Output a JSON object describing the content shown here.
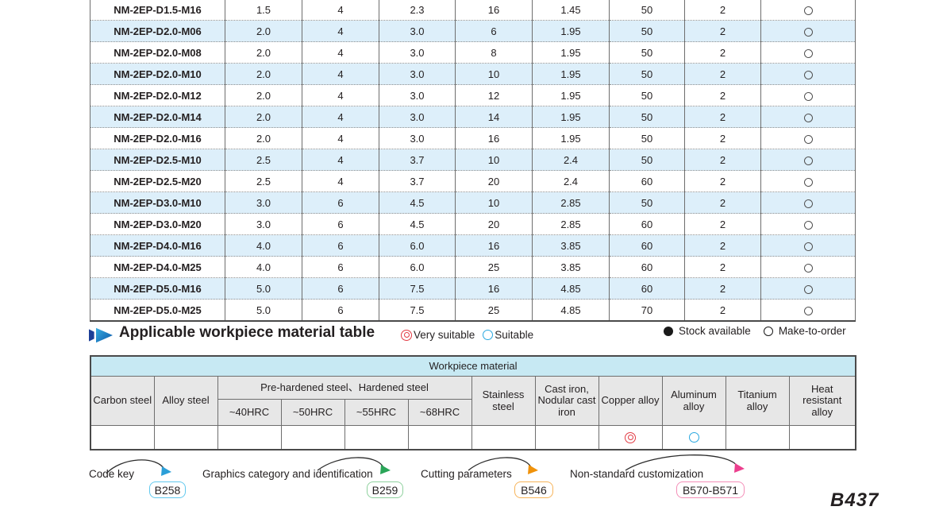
{
  "main_table": {
    "stock_legend_meaning": "Make-to-order",
    "rows": [
      {
        "model": "NM-2EP-D1.5-M16",
        "values": [
          "1.5",
          "4",
          "2.3",
          "16",
          "1.45",
          "50",
          "2"
        ],
        "stock": "make-to-order"
      },
      {
        "model": "NM-2EP-D2.0-M06",
        "values": [
          "2.0",
          "4",
          "3.0",
          "6",
          "1.95",
          "50",
          "2"
        ],
        "stock": "make-to-order"
      },
      {
        "model": "NM-2EP-D2.0-M08",
        "values": [
          "2.0",
          "4",
          "3.0",
          "8",
          "1.95",
          "50",
          "2"
        ],
        "stock": "make-to-order"
      },
      {
        "model": "NM-2EP-D2.0-M10",
        "values": [
          "2.0",
          "4",
          "3.0",
          "10",
          "1.95",
          "50",
          "2"
        ],
        "stock": "make-to-order"
      },
      {
        "model": "NM-2EP-D2.0-M12",
        "values": [
          "2.0",
          "4",
          "3.0",
          "12",
          "1.95",
          "50",
          "2"
        ],
        "stock": "make-to-order"
      },
      {
        "model": "NM-2EP-D2.0-M14",
        "values": [
          "2.0",
          "4",
          "3.0",
          "14",
          "1.95",
          "50",
          "2"
        ],
        "stock": "make-to-order"
      },
      {
        "model": "NM-2EP-D2.0-M16",
        "values": [
          "2.0",
          "4",
          "3.0",
          "16",
          "1.95",
          "50",
          "2"
        ],
        "stock": "make-to-order"
      },
      {
        "model": "NM-2EP-D2.5-M10",
        "values": [
          "2.5",
          "4",
          "3.7",
          "10",
          "2.4",
          "50",
          "2"
        ],
        "stock": "make-to-order"
      },
      {
        "model": "NM-2EP-D2.5-M20",
        "values": [
          "2.5",
          "4",
          "3.7",
          "20",
          "2.4",
          "60",
          "2"
        ],
        "stock": "make-to-order"
      },
      {
        "model": "NM-2EP-D3.0-M10",
        "values": [
          "3.0",
          "6",
          "4.5",
          "10",
          "2.85",
          "50",
          "2"
        ],
        "stock": "make-to-order"
      },
      {
        "model": "NM-2EP-D3.0-M20",
        "values": [
          "3.0",
          "6",
          "4.5",
          "20",
          "2.85",
          "60",
          "2"
        ],
        "stock": "make-to-order"
      },
      {
        "model": "NM-2EP-D4.0-M16",
        "values": [
          "4.0",
          "6",
          "6.0",
          "16",
          "3.85",
          "60",
          "2"
        ],
        "stock": "make-to-order"
      },
      {
        "model": "NM-2EP-D4.0-M25",
        "values": [
          "4.0",
          "6",
          "6.0",
          "25",
          "3.85",
          "60",
          "2"
        ],
        "stock": "make-to-order"
      },
      {
        "model": "NM-2EP-D5.0-M16",
        "values": [
          "5.0",
          "6",
          "7.5",
          "16",
          "4.85",
          "60",
          "2"
        ],
        "stock": "make-to-order"
      },
      {
        "model": "NM-2EP-D5.0-M25",
        "values": [
          "5.0",
          "6",
          "7.5",
          "25",
          "4.85",
          "70",
          "2"
        ],
        "stock": "make-to-order"
      }
    ]
  },
  "section": {
    "title": "Applicable workpiece material table",
    "legend_very_suitable": "Very suitable",
    "legend_suitable": "Suitable",
    "legend_stock_available": "Stock available",
    "legend_make_to_order": "Make-to-order",
    "very_suitable_color": "#e23b44",
    "suitable_color": "#29a8e0"
  },
  "material_table": {
    "title": "Workpiece material",
    "col_carbon": "Carbon steel",
    "col_alloy": "Alloy steel",
    "group_prehardened": "Pre-hardened steel、Hardened steel",
    "col_hrc40": "~40HRC",
    "col_hrc50": "~50HRC",
    "col_hrc55": "~55HRC",
    "col_hrc68": "~68HRC",
    "col_stainless": "Stainless steel",
    "col_castiron": "Cast iron, Nodular cast iron",
    "col_copper": "Copper alloy",
    "col_aluminum": "Aluminum alloy",
    "col_titanium": "Titanium alloy",
    "col_heat": "Heat resistant alloy",
    "ratings": [
      "",
      "",
      "",
      "",
      "",
      "",
      "",
      "",
      "very-suitable",
      "suitable",
      "",
      ""
    ]
  },
  "footer": {
    "links": [
      {
        "label": "Code key",
        "badge": "B258",
        "badge_color": "#62c9ee",
        "arrow_color": "#2b9fd8"
      },
      {
        "label": "Graphics category and identification",
        "badge": "B259",
        "badge_color": "#8fd19e",
        "arrow_color": "#2aa558"
      },
      {
        "label": "Cutting parameters",
        "badge": "B546",
        "badge_color": "#f7b45a",
        "arrow_color": "#f0920a"
      },
      {
        "label": "Non-standard customization",
        "badge": "B570-B571",
        "badge_color": "#f48fb8",
        "arrow_color": "#ec3f8e"
      }
    ],
    "page_number": "B437"
  }
}
